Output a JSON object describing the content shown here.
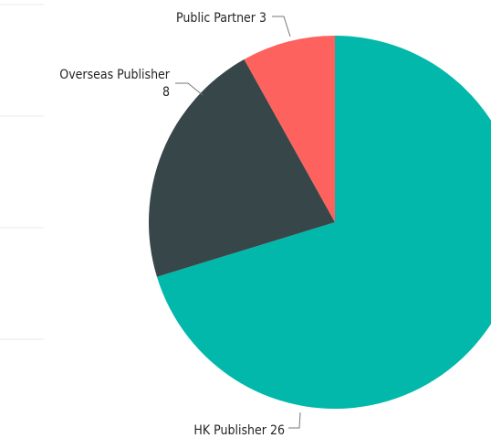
{
  "chart_data": {
    "type": "pie",
    "categories": [
      "HK Publisher",
      "Overseas Publisher",
      "Public Partner"
    ],
    "values": [
      26,
      8,
      3
    ],
    "colors": [
      "#01B8AA",
      "#374649",
      "#FD625E"
    ]
  }
}
